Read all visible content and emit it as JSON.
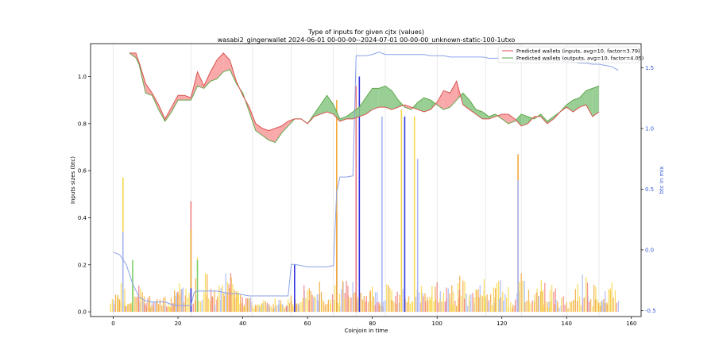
{
  "colors": {
    "inputs_line": "#d9534f",
    "inputs_fill": "#f8a0a0",
    "outputs_line": "#5fa84a",
    "outputs_fill": "#8ec98a",
    "btc_line": "#8aa2e8",
    "bar_orange": "#f2a93b",
    "bar_yellow": "#f7d74a",
    "bar_blue": "#3333e0",
    "bar_lightblue": "#a9b6f5",
    "bar_red": "#f08080",
    "bar_green": "#7ccf6a",
    "right_axis": "#3a5bd9",
    "vline": "#dddddd"
  },
  "chart_data": {
    "type": "line",
    "title": "Type of inputs for given cjtx (values)",
    "subtitle": "wasabi2_gingerwallet 2024-06-01 00-00-00--2024-07-01 00-00-00_unknown-static-100-1utxo",
    "xlabel": "Coinjoin in time",
    "ylabel": "Inputs sizes (btc)",
    "ylabel_right": "btc in mix",
    "xlim": [
      -7,
      163
    ],
    "ylim": [
      -0.02,
      1.14
    ],
    "ylim_right": [
      -0.55,
      1.7
    ],
    "xticks": [
      "0",
      "20",
      "40",
      "60",
      "80",
      "100",
      "120",
      "140",
      "160"
    ],
    "yticks": [
      "0.0",
      "0.2",
      "0.4",
      "0.6",
      "0.8",
      "1.0"
    ],
    "yticks_right": [
      "-0.5",
      "0.0",
      "0.5",
      "1.0",
      "1.5"
    ],
    "legend": [
      {
        "label": "Predicted wallets (inputs, avg=10, factor=3.79)",
        "color_key": "inputs_line"
      },
      {
        "label": "Predicted wallets (outputs, avg=10, factor=4.05)",
        "color_key": "outputs_line"
      }
    ],
    "legend_position": "top-right",
    "vlines": [
      0,
      24,
      43,
      55,
      68,
      75,
      84,
      100,
      115,
      126,
      140,
      150
    ],
    "series": [
      {
        "name": "Predicted wallets (inputs, avg=10, factor=3.79)",
        "x": [
          5,
          7,
          8,
          10,
          12,
          14,
          16,
          18,
          20,
          22,
          24,
          26,
          28,
          30,
          32,
          34,
          36,
          38,
          40,
          42,
          44,
          46,
          48,
          50,
          52,
          54,
          56,
          58,
          60,
          62,
          64,
          66,
          68,
          70,
          72,
          74,
          76,
          78,
          80,
          82,
          84,
          86,
          88,
          90,
          92,
          94,
          96,
          98,
          100,
          102,
          104,
          106,
          108,
          110,
          112,
          114,
          116,
          118,
          120,
          122,
          124,
          126,
          128,
          130,
          132,
          134,
          136,
          138,
          140,
          142,
          144,
          146,
          148,
          150
        ],
        "y": [
          1.1,
          1.1,
          1.06,
          0.97,
          0.93,
          0.88,
          0.82,
          0.87,
          0.92,
          0.92,
          0.91,
          1.02,
          0.96,
          1.02,
          1.07,
          1.1,
          1.07,
          0.98,
          0.92,
          0.87,
          0.8,
          0.78,
          0.77,
          0.78,
          0.79,
          0.81,
          0.82,
          0.82,
          0.8,
          0.83,
          0.84,
          0.85,
          0.84,
          0.81,
          0.82,
          0.82,
          0.83,
          0.84,
          0.86,
          0.87,
          0.87,
          0.86,
          0.87,
          0.88,
          0.87,
          0.86,
          0.85,
          0.86,
          0.89,
          0.94,
          0.93,
          0.98,
          0.88,
          0.86,
          0.84,
          0.82,
          0.82,
          0.83,
          0.84,
          0.84,
          0.82,
          0.79,
          0.8,
          0.83,
          0.83,
          0.8,
          0.82,
          0.85,
          0.87,
          0.85,
          0.87,
          0.88,
          0.83,
          0.85
        ]
      },
      {
        "name": "Predicted wallets (outputs, avg=10, factor=4.05)",
        "x": [
          5,
          7,
          8,
          10,
          12,
          14,
          16,
          18,
          20,
          22,
          24,
          26,
          28,
          30,
          32,
          34,
          36,
          38,
          40,
          42,
          44,
          46,
          48,
          50,
          52,
          54,
          56,
          58,
          60,
          62,
          64,
          66,
          68,
          70,
          72,
          74,
          76,
          78,
          80,
          82,
          84,
          86,
          88,
          90,
          92,
          94,
          96,
          98,
          100,
          102,
          104,
          106,
          108,
          110,
          112,
          114,
          116,
          118,
          120,
          122,
          124,
          126,
          128,
          130,
          132,
          134,
          136,
          138,
          140,
          142,
          144,
          146,
          148,
          150
        ],
        "y": [
          1.1,
          1.08,
          1.05,
          0.93,
          0.92,
          0.86,
          0.81,
          0.85,
          0.9,
          0.9,
          0.9,
          0.96,
          0.95,
          0.98,
          0.99,
          1.02,
          1.03,
          0.97,
          0.93,
          0.85,
          0.77,
          0.75,
          0.73,
          0.72,
          0.76,
          0.79,
          0.82,
          0.82,
          0.8,
          0.84,
          0.88,
          0.92,
          0.88,
          0.82,
          0.83,
          0.85,
          0.87,
          0.91,
          0.95,
          0.95,
          0.96,
          0.94,
          0.9,
          0.87,
          0.86,
          0.89,
          0.91,
          0.9,
          0.88,
          0.86,
          0.87,
          0.9,
          0.93,
          0.9,
          0.86,
          0.85,
          0.83,
          0.84,
          0.82,
          0.8,
          0.81,
          0.84,
          0.83,
          0.82,
          0.84,
          0.81,
          0.83,
          0.85,
          0.88,
          0.9,
          0.91,
          0.94,
          0.95,
          0.96
        ]
      },
      {
        "name": "",
        "axis": "right",
        "x": [
          0,
          2,
          4,
          6,
          8,
          10,
          12,
          14,
          16,
          18,
          20,
          22,
          24,
          25,
          26,
          28,
          30,
          32,
          34,
          36,
          38,
          40,
          42,
          44,
          46,
          48,
          50,
          52,
          54,
          55,
          56,
          58,
          60,
          62,
          64,
          66,
          68,
          69,
          70,
          72,
          74,
          75,
          76,
          78,
          80,
          82,
          84,
          86,
          88,
          90,
          92,
          94,
          96,
          98,
          100,
          102,
          104,
          106,
          108,
          110,
          112,
          114,
          116,
          118,
          120,
          122,
          124,
          126,
          128,
          130,
          132,
          134,
          136,
          138,
          140,
          142,
          144,
          146,
          148,
          150,
          152,
          154,
          156
        ],
        "y": [
          -0.02,
          -0.04,
          -0.12,
          -0.28,
          -0.39,
          -0.42,
          -0.43,
          -0.43,
          -0.43,
          -0.45,
          -0.46,
          -0.46,
          -0.46,
          -0.35,
          -0.34,
          -0.34,
          -0.34,
          -0.34,
          -0.35,
          -0.36,
          -0.36,
          -0.37,
          -0.38,
          -0.38,
          -0.38,
          -0.38,
          -0.38,
          -0.38,
          -0.38,
          -0.12,
          -0.12,
          -0.13,
          -0.14,
          -0.14,
          -0.14,
          -0.14,
          -0.13,
          0.48,
          0.6,
          0.6,
          0.61,
          1.6,
          1.6,
          1.6,
          1.61,
          1.63,
          1.61,
          1.61,
          1.61,
          1.61,
          1.61,
          1.61,
          1.61,
          1.6,
          1.6,
          1.6,
          1.59,
          1.59,
          1.59,
          1.59,
          1.59,
          1.59,
          1.58,
          1.58,
          1.58,
          1.58,
          1.57,
          1.57,
          1.57,
          1.57,
          1.56,
          1.56,
          1.56,
          1.56,
          1.55,
          1.55,
          1.54,
          1.54,
          1.53,
          1.53,
          1.52,
          1.51,
          1.48
        ]
      }
    ],
    "bar_spikes": [
      {
        "x": 3,
        "y": 0.57,
        "color_key": "bar_yellow"
      },
      {
        "x": 3,
        "y": 0.34,
        "color_key": "bar_lightblue"
      },
      {
        "x": 6,
        "y": 0.22,
        "color_key": "bar_green"
      },
      {
        "x": 24,
        "y": 0.47,
        "color_key": "bar_red"
      },
      {
        "x": 24,
        "y": 0.35,
        "color_key": "bar_orange"
      },
      {
        "x": 24,
        "y": 0.1,
        "color_key": "bar_blue"
      },
      {
        "x": 26,
        "y": 0.22,
        "color_key": "bar_green"
      },
      {
        "x": 56,
        "y": 0.2,
        "color_key": "bar_blue"
      },
      {
        "x": 69,
        "y": 0.42,
        "color_key": "bar_blue"
      },
      {
        "x": 69,
        "y": 0.9,
        "color_key": "bar_orange"
      },
      {
        "x": 75,
        "y": 0.84,
        "color_key": "bar_blue"
      },
      {
        "x": 75,
        "y": 0.96,
        "color_key": "bar_red"
      },
      {
        "x": 76,
        "y": 1.0,
        "color_key": "bar_blue"
      },
      {
        "x": 83,
        "y": 0.83,
        "color_key": "bar_lightblue"
      },
      {
        "x": 89,
        "y": 0.86,
        "color_key": "bar_yellow"
      },
      {
        "x": 90,
        "y": 0.83,
        "color_key": "bar_blue"
      },
      {
        "x": 93,
        "y": 0.83,
        "color_key": "bar_yellow"
      },
      {
        "x": 94,
        "y": 0.65,
        "color_key": "bar_lightblue"
      },
      {
        "x": 125,
        "y": 0.67,
        "color_key": "bar_orange"
      },
      {
        "x": 125,
        "y": 0.56,
        "color_key": "bar_lightblue"
      }
    ]
  }
}
